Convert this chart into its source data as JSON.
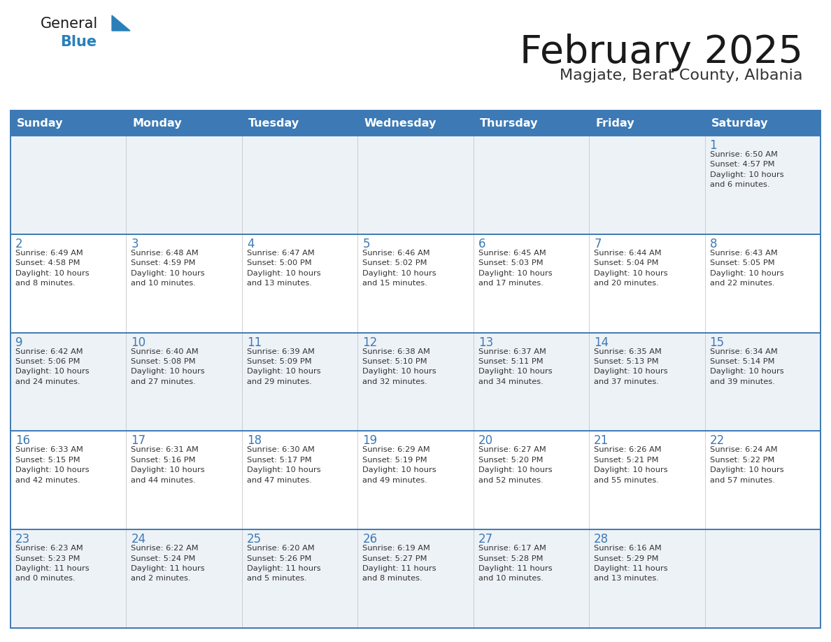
{
  "title": "February 2025",
  "subtitle": "Magjate, Berat County, Albania",
  "days_of_week": [
    "Sunday",
    "Monday",
    "Tuesday",
    "Wednesday",
    "Thursday",
    "Friday",
    "Saturday"
  ],
  "header_bg": "#3d7ab5",
  "header_text": "#ffffff",
  "cell_bg_odd": "#edf2f7",
  "cell_bg_even": "#ffffff",
  "border_color": "#3d7ab5",
  "title_color": "#1a1a1a",
  "subtitle_color": "#333333",
  "day_num_color": "#3d7ab5",
  "cell_text_color": "#333333",
  "logo_general_color": "#1a1a1a",
  "logo_blue_color": "#2980b9",
  "logo_triangle_color": "#2980b9",
  "calendar_data": [
    [
      {
        "day": "",
        "info": ""
      },
      {
        "day": "",
        "info": ""
      },
      {
        "day": "",
        "info": ""
      },
      {
        "day": "",
        "info": ""
      },
      {
        "day": "",
        "info": ""
      },
      {
        "day": "",
        "info": ""
      },
      {
        "day": "1",
        "info": "Sunrise: 6:50 AM\nSunset: 4:57 PM\nDaylight: 10 hours\nand 6 minutes."
      }
    ],
    [
      {
        "day": "2",
        "info": "Sunrise: 6:49 AM\nSunset: 4:58 PM\nDaylight: 10 hours\nand 8 minutes."
      },
      {
        "day": "3",
        "info": "Sunrise: 6:48 AM\nSunset: 4:59 PM\nDaylight: 10 hours\nand 10 minutes."
      },
      {
        "day": "4",
        "info": "Sunrise: 6:47 AM\nSunset: 5:00 PM\nDaylight: 10 hours\nand 13 minutes."
      },
      {
        "day": "5",
        "info": "Sunrise: 6:46 AM\nSunset: 5:02 PM\nDaylight: 10 hours\nand 15 minutes."
      },
      {
        "day": "6",
        "info": "Sunrise: 6:45 AM\nSunset: 5:03 PM\nDaylight: 10 hours\nand 17 minutes."
      },
      {
        "day": "7",
        "info": "Sunrise: 6:44 AM\nSunset: 5:04 PM\nDaylight: 10 hours\nand 20 minutes."
      },
      {
        "day": "8",
        "info": "Sunrise: 6:43 AM\nSunset: 5:05 PM\nDaylight: 10 hours\nand 22 minutes."
      }
    ],
    [
      {
        "day": "9",
        "info": "Sunrise: 6:42 AM\nSunset: 5:06 PM\nDaylight: 10 hours\nand 24 minutes."
      },
      {
        "day": "10",
        "info": "Sunrise: 6:40 AM\nSunset: 5:08 PM\nDaylight: 10 hours\nand 27 minutes."
      },
      {
        "day": "11",
        "info": "Sunrise: 6:39 AM\nSunset: 5:09 PM\nDaylight: 10 hours\nand 29 minutes."
      },
      {
        "day": "12",
        "info": "Sunrise: 6:38 AM\nSunset: 5:10 PM\nDaylight: 10 hours\nand 32 minutes."
      },
      {
        "day": "13",
        "info": "Sunrise: 6:37 AM\nSunset: 5:11 PM\nDaylight: 10 hours\nand 34 minutes."
      },
      {
        "day": "14",
        "info": "Sunrise: 6:35 AM\nSunset: 5:13 PM\nDaylight: 10 hours\nand 37 minutes."
      },
      {
        "day": "15",
        "info": "Sunrise: 6:34 AM\nSunset: 5:14 PM\nDaylight: 10 hours\nand 39 minutes."
      }
    ],
    [
      {
        "day": "16",
        "info": "Sunrise: 6:33 AM\nSunset: 5:15 PM\nDaylight: 10 hours\nand 42 minutes."
      },
      {
        "day": "17",
        "info": "Sunrise: 6:31 AM\nSunset: 5:16 PM\nDaylight: 10 hours\nand 44 minutes."
      },
      {
        "day": "18",
        "info": "Sunrise: 6:30 AM\nSunset: 5:17 PM\nDaylight: 10 hours\nand 47 minutes."
      },
      {
        "day": "19",
        "info": "Sunrise: 6:29 AM\nSunset: 5:19 PM\nDaylight: 10 hours\nand 49 minutes."
      },
      {
        "day": "20",
        "info": "Sunrise: 6:27 AM\nSunset: 5:20 PM\nDaylight: 10 hours\nand 52 minutes."
      },
      {
        "day": "21",
        "info": "Sunrise: 6:26 AM\nSunset: 5:21 PM\nDaylight: 10 hours\nand 55 minutes."
      },
      {
        "day": "22",
        "info": "Sunrise: 6:24 AM\nSunset: 5:22 PM\nDaylight: 10 hours\nand 57 minutes."
      }
    ],
    [
      {
        "day": "23",
        "info": "Sunrise: 6:23 AM\nSunset: 5:23 PM\nDaylight: 11 hours\nand 0 minutes."
      },
      {
        "day": "24",
        "info": "Sunrise: 6:22 AM\nSunset: 5:24 PM\nDaylight: 11 hours\nand 2 minutes."
      },
      {
        "day": "25",
        "info": "Sunrise: 6:20 AM\nSunset: 5:26 PM\nDaylight: 11 hours\nand 5 minutes."
      },
      {
        "day": "26",
        "info": "Sunrise: 6:19 AM\nSunset: 5:27 PM\nDaylight: 11 hours\nand 8 minutes."
      },
      {
        "day": "27",
        "info": "Sunrise: 6:17 AM\nSunset: 5:28 PM\nDaylight: 11 hours\nand 10 minutes."
      },
      {
        "day": "28",
        "info": "Sunrise: 6:16 AM\nSunset: 5:29 PM\nDaylight: 11 hours\nand 13 minutes."
      },
      {
        "day": "",
        "info": ""
      }
    ]
  ]
}
